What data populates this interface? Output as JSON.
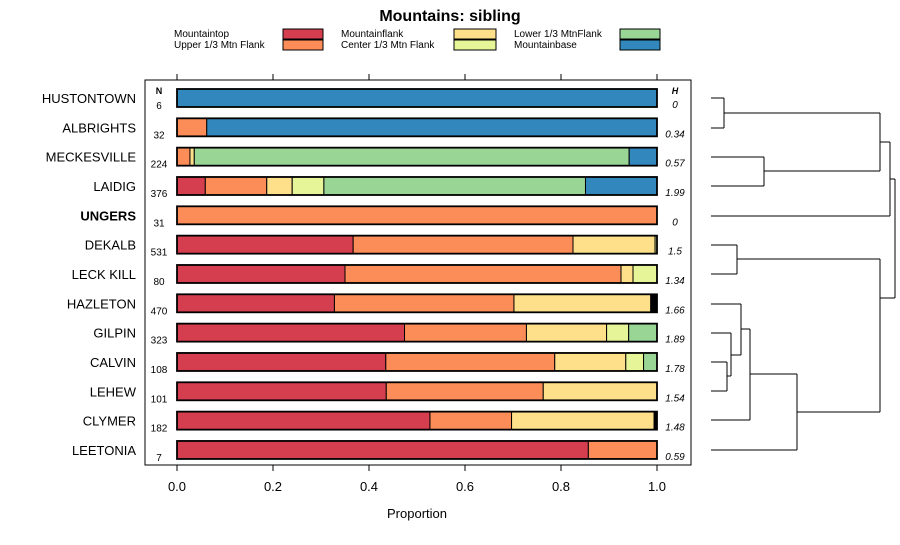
{
  "chart_data": {
    "type": "bar",
    "stacked": "horizontal-proportion",
    "title": "Mountains: sibling",
    "xlabel": "Proportion",
    "xlim": [
      0,
      1
    ],
    "xticks": [
      "0.0",
      "0.2",
      "0.4",
      "0.6",
      "0.8",
      "1.0"
    ],
    "n_header": "N",
    "h_header": "H",
    "legend": [
      {
        "name": "Mountaintop",
        "color": "#d53e4f"
      },
      {
        "name": "Upper 1/3 Mtn Flank",
        "color": "#fc8d59"
      },
      {
        "name": "Mountainflank",
        "color": "#fee08b"
      },
      {
        "name": "Center 1/3 Mtn Flank",
        "color": "#e6f598"
      },
      {
        "name": "Lower 1/3 MtnFlank",
        "color": "#99d594"
      },
      {
        "name": "Mountainbase",
        "color": "#3288bd"
      }
    ],
    "other_color": "#000000",
    "rows": [
      {
        "label": "HUSTONTOWN",
        "bold": false,
        "n": "6",
        "h": "0",
        "values": [
          0,
          0,
          0,
          0,
          0,
          1.0,
          0
        ]
      },
      {
        "label": "ALBRIGHTS",
        "bold": false,
        "n": "32",
        "h": "0.34",
        "values": [
          0,
          0.062,
          0,
          0,
          0,
          0.938,
          0
        ]
      },
      {
        "label": "MECKESVILLE",
        "bold": false,
        "n": "224",
        "h": "0.57",
        "values": [
          0,
          0.027,
          0.009,
          0,
          0.906,
          0.058,
          0
        ]
      },
      {
        "label": "LAIDIG",
        "bold": false,
        "n": "376",
        "h": "1.99",
        "values": [
          0.059,
          0.128,
          0.053,
          0.066,
          0.545,
          0.149,
          0
        ]
      },
      {
        "label": "UNGERS",
        "bold": true,
        "n": "31",
        "h": "0",
        "values": [
          0,
          1.0,
          0,
          0,
          0,
          0,
          0
        ]
      },
      {
        "label": "DEKALB",
        "bold": false,
        "n": "531",
        "h": "1.5",
        "values": [
          0.367,
          0.458,
          0.171,
          0.004,
          0,
          0,
          0
        ]
      },
      {
        "label": "LECK KILL",
        "bold": false,
        "n": "80",
        "h": "1.34",
        "values": [
          0.35,
          0.575,
          0.025,
          0.05,
          0,
          0,
          0
        ]
      },
      {
        "label": "HAZLETON",
        "bold": false,
        "n": "470",
        "h": "1.66",
        "values": [
          0.328,
          0.374,
          0.285,
          0,
          0,
          0,
          0.013
        ]
      },
      {
        "label": "GILPIN",
        "bold": false,
        "n": "323",
        "h": "1.89",
        "values": [
          0.474,
          0.254,
          0.167,
          0.046,
          0.059,
          0,
          0
        ]
      },
      {
        "label": "CALVIN",
        "bold": false,
        "n": "108",
        "h": "1.78",
        "values": [
          0.435,
          0.352,
          0.148,
          0.037,
          0.028,
          0,
          0
        ]
      },
      {
        "label": "LEHEW",
        "bold": false,
        "n": "101",
        "h": "1.54",
        "values": [
          0.436,
          0.327,
          0.237,
          0,
          0,
          0,
          0
        ]
      },
      {
        "label": "CLYMER",
        "bold": false,
        "n": "182",
        "h": "1.48",
        "values": [
          0.527,
          0.17,
          0.297,
          0,
          0,
          0,
          0.006
        ]
      },
      {
        "label": "LEETONIA",
        "bold": false,
        "n": "7",
        "h": "0.59",
        "values": [
          0.857,
          0.143,
          0,
          0,
          0,
          0,
          0
        ]
      }
    ]
  }
}
